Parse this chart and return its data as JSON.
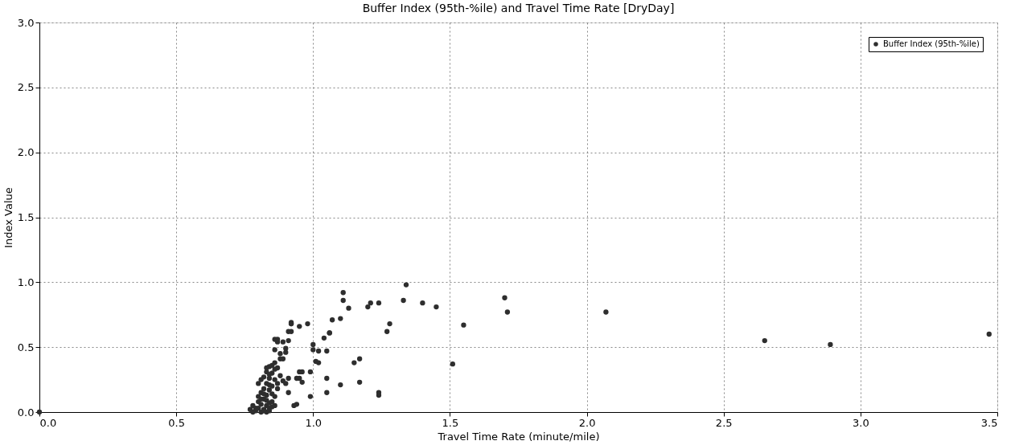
{
  "chart_data": {
    "type": "scatter",
    "title": "Buffer Index (95th-%ile) and Travel Time Rate [DryDay]",
    "xlabel": "Travel Time Rate (minute/mile)",
    "ylabel": "Index Value",
    "xlim": [
      0,
      3.5
    ],
    "xticks": [
      {
        "value": 0,
        "label": "0.0"
      },
      0.5,
      {
        "value": 1,
        "label": "1.0"
      },
      1.5,
      {
        "value": 2,
        "label": "2.0"
      },
      2.5,
      {
        "value": 3,
        "label": "3.0"
      },
      3.5
    ],
    "ylim": [
      0,
      3.0
    ],
    "yticks": [
      {
        "value": 0,
        "label": "0.0"
      },
      0.5,
      {
        "value": 1,
        "label": "1.0"
      },
      1.5,
      {
        "value": 2,
        "label": "2.0"
      },
      2.5,
      {
        "value": 3,
        "label": "3.0"
      }
    ],
    "grid": true,
    "legend": "top right",
    "marker": "circle",
    "series": [
      {
        "name": "Buffer Index (95th-%ile)",
        "color": "#2e2e2e",
        "x": [
          0.0,
          0.92,
          0.92,
          0.86,
          0.87,
          0.92,
          1.06,
          1.11,
          1.11,
          1.24,
          1.21,
          1.2,
          1.13,
          1.1,
          1.07,
          1.28,
          1.27,
          0.92,
          0.98,
          0.95,
          0.91,
          1.06,
          1.04,
          0.91,
          0.87,
          0.89,
          1.0,
          1.0,
          1.02,
          1.05,
          0.86,
          0.9,
          0.9,
          0.88,
          0.88,
          0.89,
          1.01,
          1.02,
          1.15,
          1.17,
          0.84,
          0.86,
          0.87,
          0.95,
          0.96,
          0.99,
          1.05,
          1.1,
          1.17,
          0.96,
          0.95,
          0.94,
          0.91,
          0.9,
          0.89,
          0.91,
          1.05,
          0.99,
          0.94,
          0.93,
          1.24,
          1.24,
          1.34,
          1.33,
          1.4,
          1.45,
          1.55,
          1.51,
          1.7,
          1.71,
          2.07,
          2.65,
          2.89,
          3.47,
          0.77,
          0.78,
          0.79,
          0.8,
          0.8,
          0.81,
          0.81,
          0.82,
          0.82,
          0.83,
          0.83,
          0.84,
          0.84,
          0.85,
          0.85,
          0.86,
          0.86,
          0.87,
          0.78,
          0.79,
          0.8,
          0.81,
          0.82,
          0.83,
          0.84,
          0.85,
          0.86,
          0.82,
          0.83,
          0.84,
          0.85,
          0.8,
          0.81,
          0.82,
          0.83,
          0.84,
          0.85,
          0.86,
          0.87,
          0.88,
          0.83,
          0.84,
          0.85,
          0.84,
          0.83,
          0.82,
          0.81
        ],
        "values": [
          0.0,
          0.68,
          0.69,
          0.56,
          0.54,
          0.62,
          0.61,
          0.92,
          0.86,
          0.84,
          0.84,
          0.81,
          0.8,
          0.72,
          0.71,
          0.68,
          0.62,
          0.68,
          0.68,
          0.66,
          0.62,
          0.61,
          0.57,
          0.55,
          0.56,
          0.54,
          0.52,
          0.48,
          0.47,
          0.47,
          0.48,
          0.49,
          0.46,
          0.45,
          0.41,
          0.41,
          0.39,
          0.38,
          0.38,
          0.41,
          0.35,
          0.38,
          0.34,
          0.31,
          0.31,
          0.31,
          0.26,
          0.21,
          0.23,
          0.23,
          0.26,
          0.26,
          0.26,
          0.22,
          0.24,
          0.15,
          0.15,
          0.12,
          0.06,
          0.05,
          0.15,
          0.13,
          0.98,
          0.86,
          0.84,
          0.81,
          0.67,
          0.37,
          0.88,
          0.77,
          0.77,
          0.55,
          0.52,
          0.6,
          0.02,
          0.05,
          0.01,
          0.03,
          0.08,
          0.0,
          0.06,
          0.02,
          0.1,
          0.05,
          0.13,
          0.03,
          0.17,
          0.08,
          0.2,
          0.12,
          0.25,
          0.18,
          0.0,
          0.03,
          0.12,
          0.15,
          0.18,
          0.22,
          0.26,
          0.3,
          0.33,
          0.27,
          0.31,
          0.21,
          0.36,
          0.22,
          0.25,
          0.14,
          0.09,
          0.07,
          0.14,
          0.05,
          0.22,
          0.28,
          0.0,
          0.01,
          0.04,
          0.29,
          0.34,
          0.01,
          0.1
        ]
      }
    ]
  }
}
